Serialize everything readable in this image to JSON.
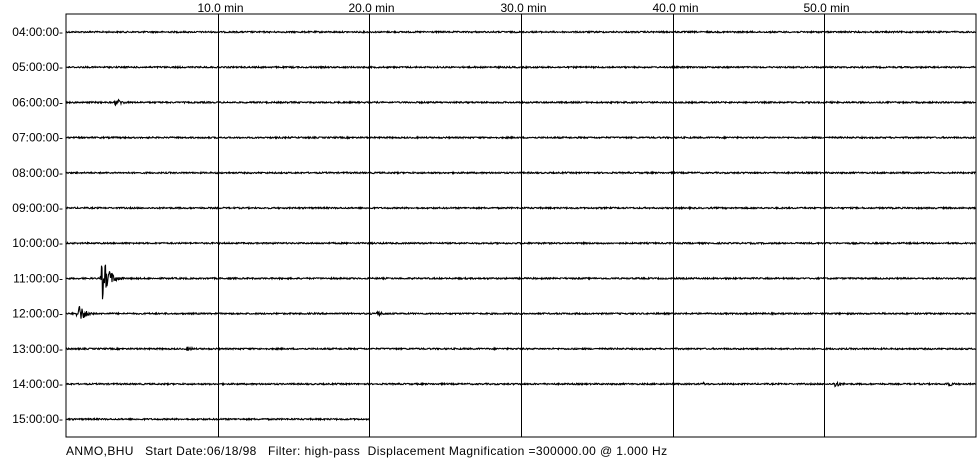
{
  "chart_data": {
    "type": "line",
    "subtype": "helicorder",
    "station": "ANMO,BHU",
    "x_unit": "min",
    "x_range": [
      0,
      60
    ],
    "x_ticks": [
      {
        "value": 10,
        "label": "10.0 min"
      },
      {
        "value": 20,
        "label": "20.0 min"
      },
      {
        "value": 30,
        "label": "30.0 min"
      },
      {
        "value": 40,
        "label": "40.0 min"
      },
      {
        "value": 50,
        "label": "50.0 min"
      }
    ],
    "row_labels": [
      "04:00:00-",
      "05:00:00-",
      "06:00:00-",
      "07:00:00-",
      "08:00:00-",
      "09:00:00-",
      "10:00:00-",
      "11:00:00-",
      "12:00:00-",
      "13:00:00-",
      "14:00:00-",
      "15:00:00-"
    ],
    "last_row_end_min": 20,
    "events": [
      {
        "row": 2,
        "minute": 3.3,
        "amplitude": 0.35
      },
      {
        "row": 7,
        "minute": 2.4,
        "amplitude": 1.8
      },
      {
        "row": 8,
        "minute": 0.8,
        "amplitude": 0.9
      },
      {
        "row": 8,
        "minute": 20.5,
        "amplitude": 0.25
      },
      {
        "row": 9,
        "minute": 8.0,
        "amplitude": 0.2
      },
      {
        "row": 10,
        "minute": 42.0,
        "amplitude": 0.15
      },
      {
        "row": 10,
        "minute": 50.7,
        "amplitude": 0.3
      },
      {
        "row": 10,
        "minute": 58.1,
        "amplitude": 0.25
      }
    ],
    "grid": true,
    "line_color": "#000000"
  },
  "footer": {
    "station": "ANMO,BHU",
    "start_date_label": "Start Date:",
    "start_date": "06/18/98",
    "filter_label": "Filter:",
    "filter": "high-pass",
    "magnification_label": "Displacement Magnification =",
    "magnification": "300000.00",
    "frequency": "@ 1.000 Hz"
  }
}
